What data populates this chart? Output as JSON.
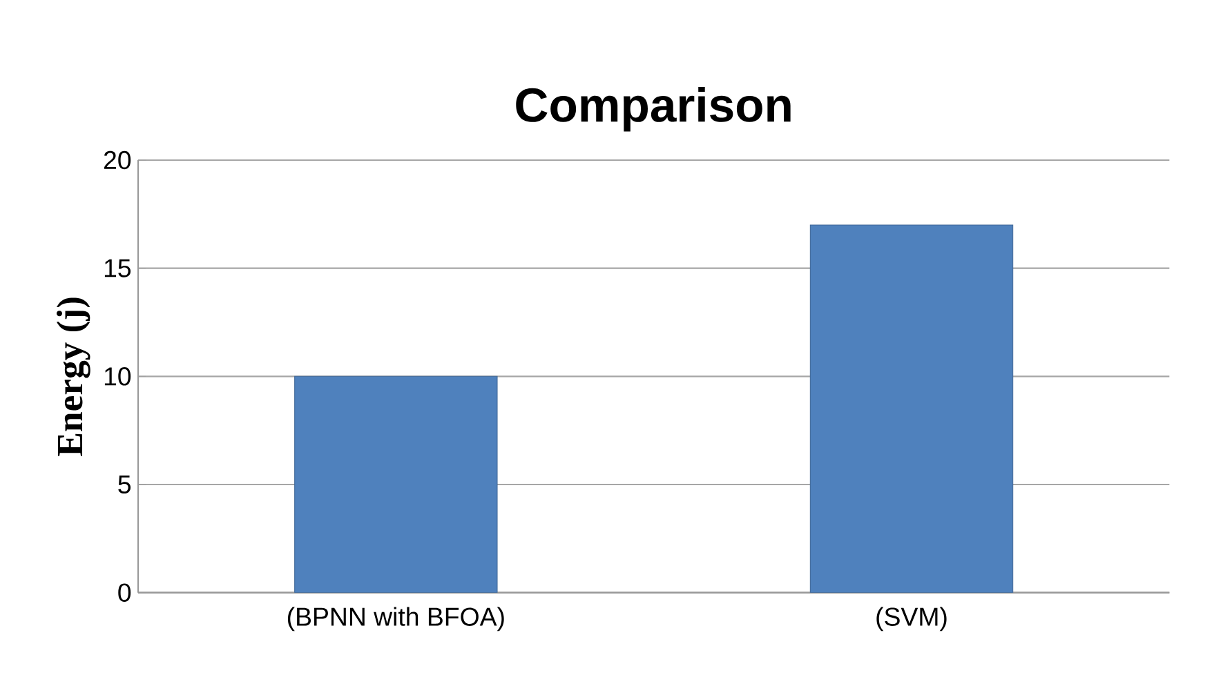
{
  "chart_data": {
    "type": "bar",
    "title": "Comparison",
    "ylabel": "Energy (j)",
    "categories": [
      "(BPNN with BFOA)",
      "(SVM)"
    ],
    "values": [
      10,
      17
    ],
    "color": "#4f81bd",
    "ylim": [
      0,
      20
    ],
    "yticks": [
      0,
      5,
      10,
      15,
      20
    ],
    "grid": "y"
  }
}
